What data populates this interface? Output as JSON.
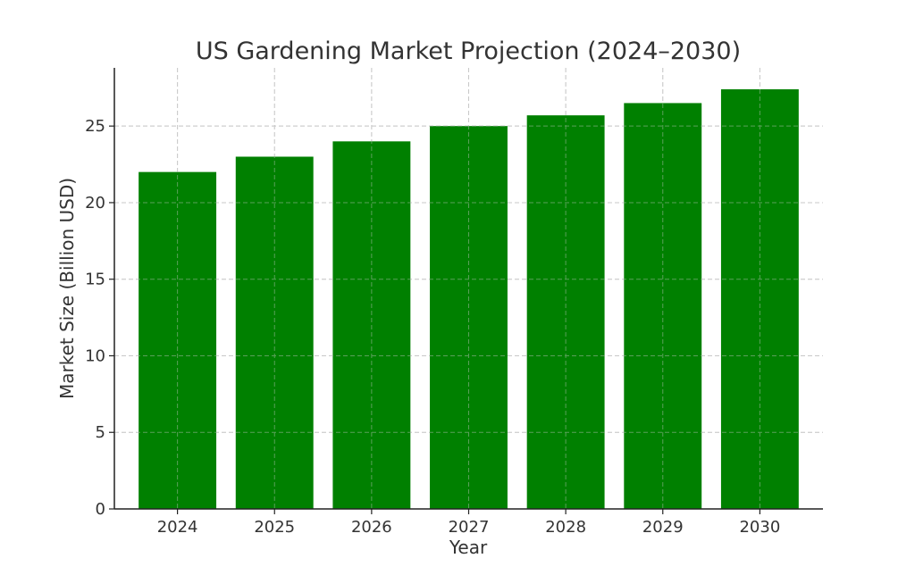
{
  "chart_data": {
    "type": "bar",
    "title": "US Gardening Market Projection (2024–2030)",
    "xlabel": "Year",
    "ylabel": "Market Size (Billion USD)",
    "categories": [
      "2024",
      "2025",
      "2026",
      "2027",
      "2028",
      "2029",
      "2030"
    ],
    "values": [
      22.0,
      23.0,
      24.0,
      25.0,
      25.7,
      26.5,
      27.4
    ],
    "ylim": [
      0,
      28.8
    ],
    "yticks": [
      0,
      5,
      10,
      15,
      20,
      25
    ],
    "grid": true,
    "bar_color": "#008000"
  }
}
